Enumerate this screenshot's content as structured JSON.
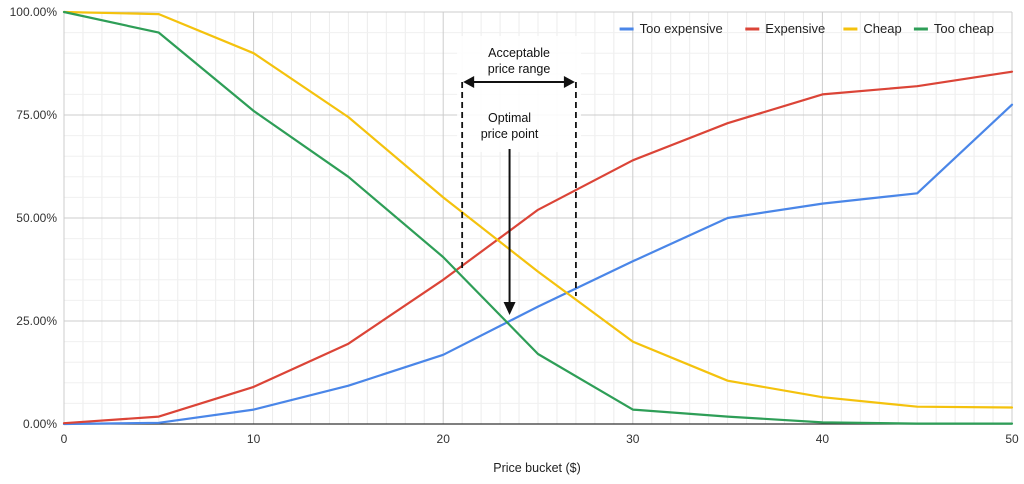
{
  "chart_data": {
    "type": "line",
    "title": "",
    "xlabel": "Price bucket ($)",
    "ylabel": "",
    "x": [
      0,
      5,
      10,
      15,
      20,
      25,
      30,
      35,
      40,
      45,
      50
    ],
    "xlim": [
      0,
      50
    ],
    "ylim": [
      0,
      100
    ],
    "x_ticks": [
      "0",
      "10",
      "20",
      "30",
      "40",
      "50"
    ],
    "y_ticks": [
      "0.00%",
      "25.00%",
      "50.00%",
      "75.00%",
      "100.00%"
    ],
    "grid": true,
    "legend_position": "top-right",
    "series": [
      {
        "name": "Too expensive",
        "color": "#4a86e8",
        "values": [
          0.0,
          0.3,
          3.5,
          9.3,
          16.8,
          28.5,
          39.5,
          50.0,
          53.5,
          56.0,
          77.5
        ]
      },
      {
        "name": "Expensive",
        "color": "#db4437",
        "values": [
          0.2,
          1.8,
          9.0,
          19.5,
          35.0,
          52.0,
          64.0,
          73.0,
          80.0,
          82.0,
          85.5
        ]
      },
      {
        "name": "Cheap",
        "color": "#f4c20d",
        "values": [
          100.0,
          99.5,
          90.0,
          74.5,
          55.0,
          37.0,
          20.0,
          10.5,
          6.5,
          4.2,
          4.0
        ]
      },
      {
        "name": "Too cheap",
        "color": "#2e9e57",
        "values": [
          100.0,
          95.0,
          76.0,
          60.0,
          40.5,
          17.0,
          3.5,
          1.8,
          0.4,
          0.1,
          0.1
        ]
      }
    ],
    "annotations": {
      "acceptable_range_line1": "Acceptable",
      "acceptable_range_line2": "price range",
      "acceptable_range_x": [
        21,
        27
      ],
      "optimal_point_line1": "Optimal",
      "optimal_point_line2": "price point",
      "optimal_point_x": 23.5
    }
  }
}
